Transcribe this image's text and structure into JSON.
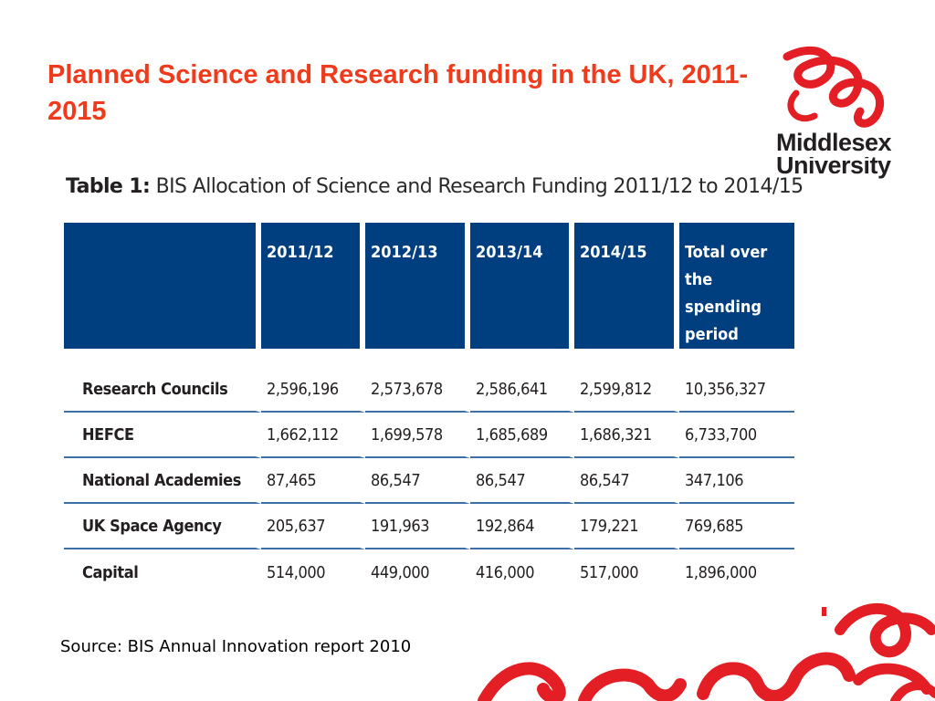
{
  "slide": {
    "title": "Planned Science and Research funding in the UK, 2011-2015",
    "source": "Source:  BIS Annual Innovation report 2010"
  },
  "logo": {
    "line1": "Middlesex",
    "line2": "University",
    "color": "#e31e24",
    "icon": "middlesex-swirl-icon"
  },
  "table": {
    "caption_prefix": "Table 1:",
    "caption_text": "BIS Allocation of Science and Research Funding 2011/12 to 2014/15",
    "header_color": "#003f7f",
    "headers": [
      "",
      "2011/12",
      "2012/13",
      "2013/14",
      "2014/15",
      "Total over the spending period"
    ],
    "rows": [
      {
        "label": "Research Councils",
        "values": [
          "2,596,196",
          "2,573,678",
          "2,586,641",
          "2,599,812",
          "10,356,327"
        ]
      },
      {
        "label": "HEFCE",
        "values": [
          "1,662,112",
          "1,699,578",
          "1,685,689",
          "1,686,321",
          "6,733,700"
        ]
      },
      {
        "label": "National Academies",
        "values": [
          "87,465",
          "86,547",
          "86,547",
          "86,547",
          "347,106"
        ]
      },
      {
        "label": "UK Space Agency",
        "values": [
          "205,637",
          "191,963",
          "192,864",
          "179,221",
          "769,685"
        ]
      },
      {
        "label": "Capital",
        "values": [
          "514,000",
          "449,000",
          "416,000",
          "517,000",
          "1,896,000"
        ]
      }
    ]
  },
  "accent_color": "#ef3b1c"
}
